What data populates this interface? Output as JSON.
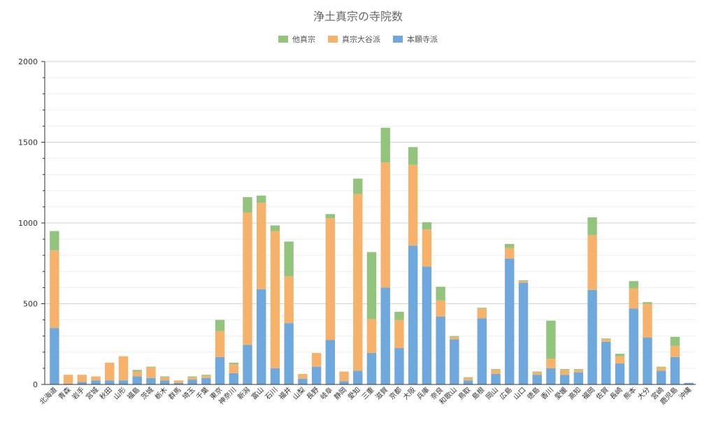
{
  "chart_data": {
    "type": "bar",
    "stacked": true,
    "title": "浄土真宗の寺院数",
    "xlabel": "",
    "ylabel": "",
    "ylim": [
      0,
      2000
    ],
    "yticks": [
      0,
      500,
      1000,
      1500,
      2000
    ],
    "grid": true,
    "legend_position": "top",
    "categories": [
      "北海道",
      "青森",
      "岩手",
      "宮城",
      "秋田",
      "山形",
      "福島",
      "茨城",
      "栃木",
      "群馬",
      "埼玉",
      "千葉",
      "東京",
      "神奈川",
      "新潟",
      "富山",
      "石川",
      "福井",
      "山梨",
      "長野",
      "岐阜",
      "静岡",
      "愛知",
      "三重",
      "滋賀",
      "京都",
      "大阪",
      "兵庫",
      "奈良",
      "和歌山",
      "鳥取",
      "島根",
      "岡山",
      "広島",
      "山口",
      "徳島",
      "香川",
      "愛媛",
      "高知",
      "福岡",
      "佐賀",
      "長崎",
      "熊本",
      "大分",
      "宮崎",
      "鹿児島",
      "沖縄"
    ],
    "series": [
      {
        "name": "本願寺派",
        "color": "#6fa8dc",
        "values": [
          350,
          5,
          15,
          25,
          25,
          25,
          50,
          40,
          25,
          10,
          30,
          40,
          170,
          70,
          245,
          590,
          100,
          380,
          35,
          110,
          275,
          20,
          85,
          195,
          600,
          225,
          860,
          730,
          420,
          280,
          25,
          410,
          65,
          780,
          630,
          60,
          100,
          60,
          75,
          585,
          265,
          130,
          470,
          290,
          85,
          170,
          10
        ]
      },
      {
        "name": "真宗大谷派",
        "color": "#f6b26b",
        "values": [
          480,
          55,
          45,
          25,
          110,
          150,
          30,
          65,
          20,
          15,
          15,
          15,
          160,
          55,
          820,
          535,
          850,
          290,
          30,
          85,
          755,
          60,
          1095,
          210,
          775,
          175,
          500,
          230,
          100,
          15,
          15,
          60,
          25,
          65,
          10,
          15,
          60,
          30,
          15,
          340,
          15,
          45,
          125,
          210,
          20,
          70,
          0
        ]
      },
      {
        "name": "他真宗",
        "color": "#93c47d",
        "values": [
          120,
          0,
          0,
          0,
          0,
          0,
          10,
          5,
          5,
          0,
          5,
          5,
          70,
          10,
          95,
          45,
          35,
          215,
          0,
          0,
          25,
          0,
          95,
          415,
          215,
          50,
          110,
          45,
          85,
          5,
          5,
          5,
          5,
          25,
          5,
          5,
          235,
          5,
          5,
          110,
          5,
          15,
          45,
          10,
          5,
          55,
          0
        ]
      }
    ]
  }
}
